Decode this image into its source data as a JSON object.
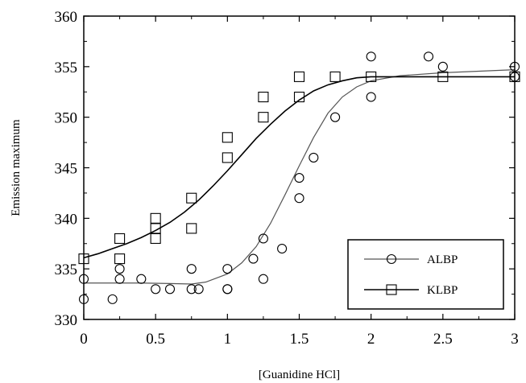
{
  "chart_data": {
    "type": "scatter",
    "title": "",
    "xlabel": "[Guanidine HCl]",
    "ylabel": "Emission maximum",
    "xlim": [
      0,
      3
    ],
    "ylim": [
      330,
      360
    ],
    "xticks": [
      0,
      0.5,
      1,
      1.5,
      2,
      2.5,
      3
    ],
    "xtick_labels": [
      "0",
      "0.5",
      "1",
      "1.5",
      "2",
      "2.5",
      "3"
    ],
    "yticks": [
      330,
      335,
      340,
      345,
      350,
      355,
      360
    ],
    "ytick_labels": [
      "330",
      "335",
      "340",
      "345",
      "350",
      "355",
      "360"
    ],
    "grid": false,
    "legend_position": "bottom-right",
    "series": [
      {
        "name": "ALBP",
        "marker": "circle",
        "color": "#000000",
        "line_color": "#555555",
        "points": [
          [
            0,
            332
          ],
          [
            0,
            334
          ],
          [
            0.2,
            332
          ],
          [
            0.25,
            334
          ],
          [
            0.25,
            335
          ],
          [
            0.4,
            334
          ],
          [
            0.5,
            333
          ],
          [
            0.6,
            333
          ],
          [
            0.75,
            333
          ],
          [
            0.75,
            335
          ],
          [
            0.8,
            333
          ],
          [
            1,
            333
          ],
          [
            1,
            333
          ],
          [
            1,
            335
          ],
          [
            1.18,
            336
          ],
          [
            1.25,
            334
          ],
          [
            1.25,
            338
          ],
          [
            1.38,
            337
          ],
          [
            1.5,
            342
          ],
          [
            1.5,
            344
          ],
          [
            1.6,
            346
          ],
          [
            1.75,
            350
          ],
          [
            2,
            352
          ],
          [
            2,
            356
          ],
          [
            2.4,
            356
          ],
          [
            2.5,
            355
          ],
          [
            3,
            354
          ],
          [
            3,
            355
          ]
        ],
        "fit_curve": [
          [
            0,
            333.6
          ],
          [
            0.2,
            333.6
          ],
          [
            0.4,
            333.6
          ],
          [
            0.6,
            333.55
          ],
          [
            0.75,
            333.5
          ],
          [
            0.85,
            333.7
          ],
          [
            1,
            334.5
          ],
          [
            1.1,
            335.6
          ],
          [
            1.2,
            337.2
          ],
          [
            1.3,
            339.5
          ],
          [
            1.4,
            342.3
          ],
          [
            1.5,
            345.2
          ],
          [
            1.6,
            348.0
          ],
          [
            1.7,
            350.4
          ],
          [
            1.8,
            352.0
          ],
          [
            1.9,
            353.0
          ],
          [
            2,
            353.6
          ],
          [
            2.2,
            354.1
          ],
          [
            2.5,
            354.4
          ],
          [
            2.75,
            354.55
          ],
          [
            3,
            354.7
          ]
        ]
      },
      {
        "name": "KLBP",
        "marker": "square",
        "color": "#000000",
        "line_color": "#000000",
        "points": [
          [
            0,
            336
          ],
          [
            0.25,
            336
          ],
          [
            0.25,
            338
          ],
          [
            0.5,
            338
          ],
          [
            0.5,
            339
          ],
          [
            0.5,
            340
          ],
          [
            0.75,
            339
          ],
          [
            0.75,
            342
          ],
          [
            1,
            346
          ],
          [
            1,
            348
          ],
          [
            1.25,
            350
          ],
          [
            1.25,
            352
          ],
          [
            1.5,
            352
          ],
          [
            1.5,
            354
          ],
          [
            1.75,
            354
          ],
          [
            2,
            354
          ],
          [
            2.5,
            354
          ],
          [
            3,
            354
          ]
        ],
        "fit_curve": [
          [
            0,
            336.1
          ],
          [
            0.1,
            336.5
          ],
          [
            0.2,
            337.0
          ],
          [
            0.3,
            337.5
          ],
          [
            0.4,
            338.1
          ],
          [
            0.5,
            338.8
          ],
          [
            0.6,
            339.6
          ],
          [
            0.7,
            340.6
          ],
          [
            0.8,
            341.8
          ],
          [
            0.9,
            343.2
          ],
          [
            1,
            344.7
          ],
          [
            1.1,
            346.3
          ],
          [
            1.2,
            347.9
          ],
          [
            1.3,
            349.3
          ],
          [
            1.4,
            350.6
          ],
          [
            1.5,
            351.7
          ],
          [
            1.6,
            352.6
          ],
          [
            1.7,
            353.2
          ],
          [
            1.8,
            353.6
          ],
          [
            1.9,
            353.9
          ],
          [
            2,
            354.0
          ],
          [
            2.25,
            354.0
          ],
          [
            2.5,
            354.0
          ],
          [
            2.75,
            354.0
          ],
          [
            3,
            354.0
          ]
        ]
      }
    ]
  }
}
